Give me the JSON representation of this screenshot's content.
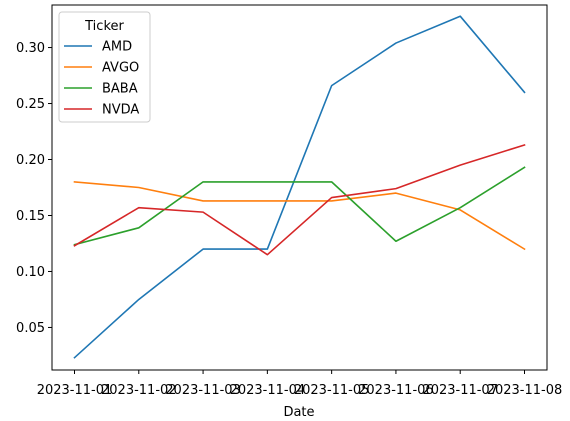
{
  "chart_data": {
    "type": "line",
    "xlabel": "Date",
    "ylabel": "",
    "x": [
      "2023-11-01",
      "2023-11-02",
      "2023-11-03",
      "2023-11-04",
      "2023-11-05",
      "2023-11-06",
      "2023-11-07",
      "2023-11-08"
    ],
    "ylim": [
      0.012,
      0.338
    ],
    "yticks": [
      0.05,
      0.1,
      0.15,
      0.2,
      0.25,
      0.3
    ],
    "ytick_labels": [
      "0.05",
      "0.10",
      "0.15",
      "0.20",
      "0.25",
      "0.30"
    ],
    "grid": false,
    "legend": {
      "title": "Ticker",
      "placement": "upper-left"
    },
    "series": [
      {
        "name": "AMD",
        "color": "#1f77b4",
        "values": [
          0.023,
          0.075,
          0.12,
          0.12,
          0.266,
          0.304,
          0.328,
          0.26
        ]
      },
      {
        "name": "AVGO",
        "color": "#ff7f0e",
        "values": [
          0.18,
          0.175,
          0.163,
          0.163,
          0.163,
          0.17,
          0.155,
          0.12
        ]
      },
      {
        "name": "BABA",
        "color": "#2ca02c",
        "values": [
          0.124,
          0.139,
          0.18,
          0.18,
          0.18,
          0.127,
          0.157,
          0.193
        ]
      },
      {
        "name": "NVDA",
        "color": "#d62728",
        "values": [
          0.123,
          0.157,
          0.153,
          0.115,
          0.166,
          0.174,
          0.195,
          0.213
        ]
      }
    ]
  }
}
